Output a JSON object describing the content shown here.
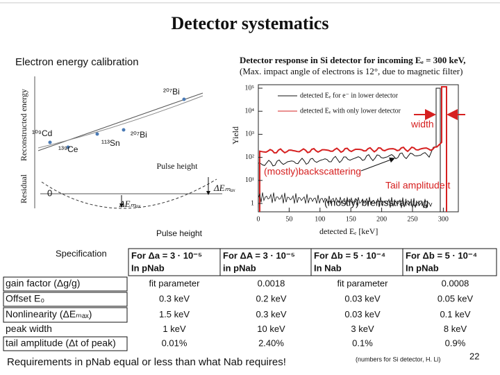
{
  "title": "Detector systematics",
  "calibration": {
    "heading": "Electron energy calibration",
    "y_label_top": "Reconstructed energy",
    "y_label_bottom": "Residual",
    "points": [
      "¹⁰⁹Cd",
      "¹³⁹Ce",
      "¹¹³Sn",
      "²⁰⁷Bi",
      "²⁰⁷Bi"
    ],
    "x_label_top": "Pulse height",
    "zero": "0",
    "delta_right": "ΔEₘₐₓ",
    "delta_bottom": "ΔEₘₐₓ",
    "x_label_bottom": "Pulse height"
  },
  "detector": {
    "title_line1": "Detector response in Si detector for incoming Eₑ = 300 keV,",
    "title_line2": "(Max. impact angle of electrons is 12°, due to magnetic filter)",
    "legend": [
      "detected Eₑ for e⁻ in lower detector",
      "detected Eₑ with only lower detector"
    ],
    "y_label": "Yield",
    "yticks": [
      "10⁵",
      "10⁴",
      "10³",
      "10²",
      "10¹",
      "1"
    ],
    "xticks": [
      "0",
      "50",
      "100",
      "150",
      "200",
      "250",
      "300"
    ],
    "x_label": "detected Eₑ [keV]",
    "annotations": {
      "width": "width",
      "backscattering": "(mostly)backscattering",
      "tail": "Tail amplitude t",
      "bremsstrahlung": "(mostly) bremsstrahlung"
    }
  },
  "table": {
    "label": "Specification",
    "headers": [
      [
        "For Δa = 3 · 10⁻⁵",
        "In pNab"
      ],
      [
        "For ΔA = 3 · 10⁻⁵",
        "in pNab"
      ],
      [
        "For Δb = 5 · 10⁻⁴",
        "In Nab"
      ],
      [
        "For Δb = 5 · 10⁻⁴",
        "In pNab"
      ]
    ],
    "rows": [
      [
        "gain factor (Δg/g)",
        "fit parameter",
        "0.0018",
        "fit parameter",
        "0.0008"
      ],
      [
        "Offset E₀",
        "0.3 keV",
        "0.2 keV",
        "0.03 keV",
        "0.05 keV"
      ],
      [
        "Nonlinearity (ΔEₘₐₓ)",
        "1.5 keV",
        "0.3 keV",
        "0.03 keV",
        "0.1 keV"
      ],
      [
        "peak width",
        "1 keV",
        "10 keV",
        "3 keV",
        "8 keV"
      ],
      [
        "tail amplitude (Δt of peak)",
        "0.01%",
        "2.40%",
        "0.1%",
        "0.9%"
      ]
    ]
  },
  "footer": {
    "note": "Requirements in pNab equal or less than what Nab requires!",
    "credit": "(numbers for Si detector, H. Li)",
    "page": "22"
  }
}
